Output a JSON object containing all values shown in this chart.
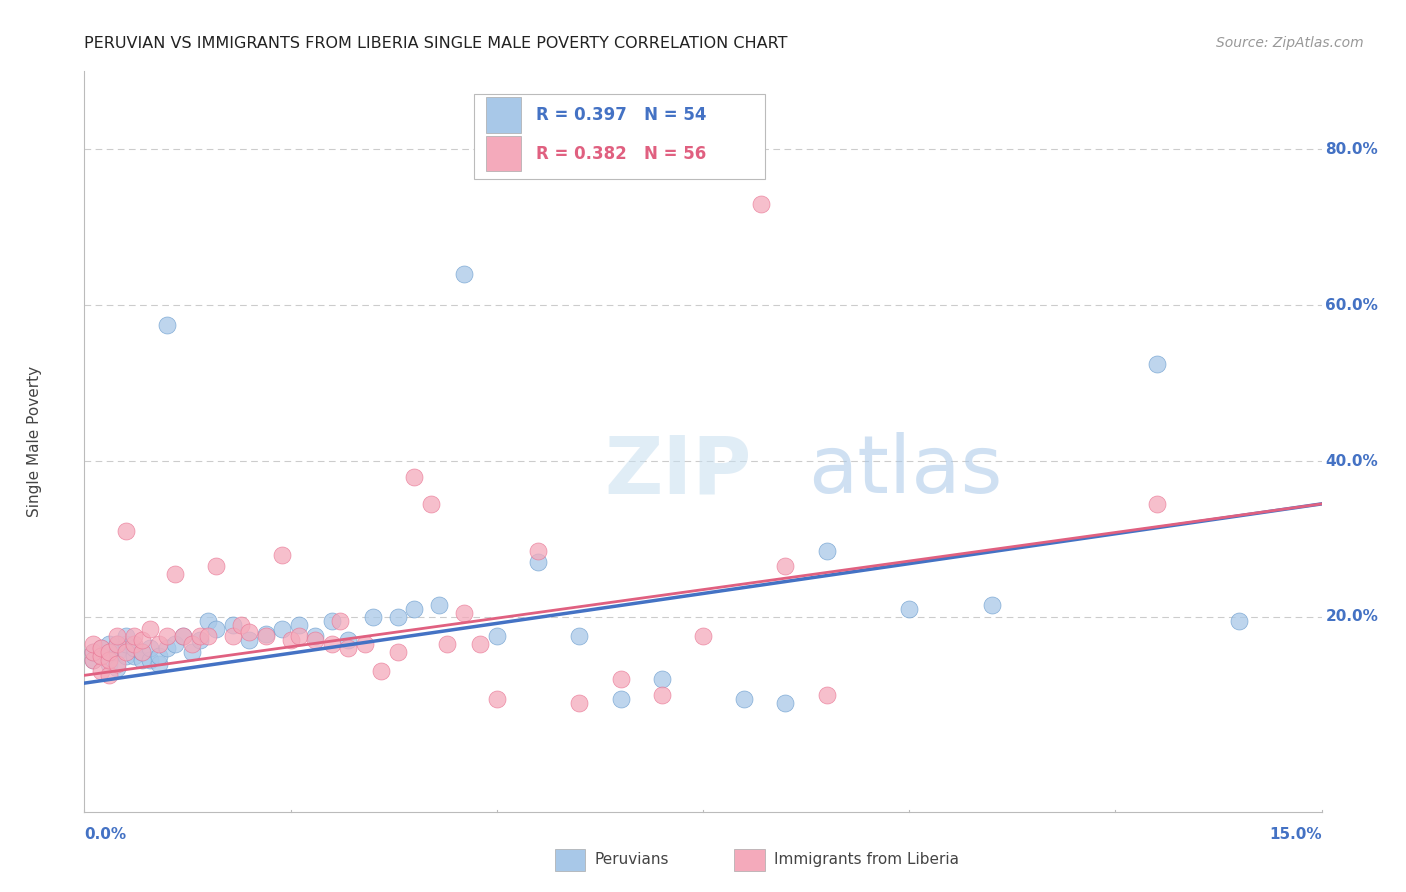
{
  "title": "PERUVIAN VS IMMIGRANTS FROM LIBERIA SINGLE MALE POVERTY CORRELATION CHART",
  "source": "Source: ZipAtlas.com",
  "ylabel": "Single Male Poverty",
  "y_tick_labels": [
    "20.0%",
    "40.0%",
    "60.0%",
    "80.0%"
  ],
  "y_tick_values": [
    0.2,
    0.4,
    0.6,
    0.8
  ],
  "xlim": [
    0.0,
    0.15
  ],
  "ylim": [
    -0.05,
    0.9
  ],
  "legend_label1": "R = 0.397   N = 54",
  "legend_label2": "R = 0.382   N = 56",
  "legend_bottom1": "Peruvians",
  "legend_bottom2": "Immigrants from Liberia",
  "color_blue": "#A8C8E8",
  "color_pink": "#F4AABB",
  "color_blue_dark": "#6699CC",
  "color_pink_dark": "#E87090",
  "color_blue_line": "#4472C4",
  "color_pink_line": "#E06080",
  "color_title": "#222222",
  "color_source": "#999999",
  "color_axis_right": "#4472C4",
  "color_grid": "#CCCCCC",
  "background_color": "#FFFFFF",
  "watermark_zip": "ZIP",
  "watermark_atlas": "atlas",
  "trend_x": [
    0.0,
    0.15
  ],
  "blue_trend_y": [
    0.115,
    0.345
  ],
  "pink_trend_y": [
    0.125,
    0.345
  ],
  "blue_x": [
    0.001,
    0.001,
    0.002,
    0.002,
    0.003,
    0.003,
    0.003,
    0.004,
    0.004,
    0.004,
    0.005,
    0.005,
    0.005,
    0.006,
    0.006,
    0.007,
    0.007,
    0.008,
    0.008,
    0.009,
    0.009,
    0.01,
    0.01,
    0.011,
    0.012,
    0.013,
    0.014,
    0.015,
    0.016,
    0.018,
    0.02,
    0.022,
    0.024,
    0.026,
    0.028,
    0.03,
    0.032,
    0.035,
    0.038,
    0.04,
    0.043,
    0.046,
    0.05,
    0.055,
    0.06,
    0.065,
    0.07,
    0.08,
    0.085,
    0.09,
    0.1,
    0.11,
    0.13,
    0.14
  ],
  "blue_y": [
    0.145,
    0.155,
    0.15,
    0.16,
    0.14,
    0.155,
    0.165,
    0.135,
    0.155,
    0.165,
    0.15,
    0.165,
    0.175,
    0.15,
    0.16,
    0.145,
    0.155,
    0.145,
    0.16,
    0.14,
    0.15,
    0.16,
    0.575,
    0.165,
    0.175,
    0.155,
    0.17,
    0.195,
    0.185,
    0.19,
    0.17,
    0.178,
    0.185,
    0.19,
    0.175,
    0.195,
    0.17,
    0.2,
    0.2,
    0.21,
    0.215,
    0.64,
    0.175,
    0.27,
    0.175,
    0.095,
    0.12,
    0.095,
    0.09,
    0.285,
    0.21,
    0.215,
    0.525,
    0.195
  ],
  "pink_x": [
    0.001,
    0.001,
    0.001,
    0.002,
    0.002,
    0.002,
    0.003,
    0.003,
    0.003,
    0.004,
    0.004,
    0.004,
    0.005,
    0.005,
    0.006,
    0.006,
    0.007,
    0.007,
    0.008,
    0.009,
    0.01,
    0.011,
    0.012,
    0.013,
    0.014,
    0.015,
    0.016,
    0.018,
    0.019,
    0.02,
    0.022,
    0.024,
    0.025,
    0.026,
    0.028,
    0.03,
    0.031,
    0.032,
    0.034,
    0.036,
    0.038,
    0.04,
    0.042,
    0.044,
    0.046,
    0.048,
    0.05,
    0.055,
    0.06,
    0.065,
    0.07,
    0.075,
    0.082,
    0.085,
    0.09,
    0.13
  ],
  "pink_y": [
    0.145,
    0.155,
    0.165,
    0.13,
    0.15,
    0.16,
    0.125,
    0.145,
    0.155,
    0.14,
    0.165,
    0.175,
    0.155,
    0.31,
    0.165,
    0.175,
    0.155,
    0.17,
    0.185,
    0.165,
    0.175,
    0.255,
    0.175,
    0.165,
    0.175,
    0.175,
    0.265,
    0.175,
    0.19,
    0.18,
    0.175,
    0.28,
    0.17,
    0.175,
    0.17,
    0.165,
    0.195,
    0.16,
    0.165,
    0.13,
    0.155,
    0.38,
    0.345,
    0.165,
    0.205,
    0.165,
    0.095,
    0.285,
    0.09,
    0.12,
    0.1,
    0.175,
    0.73,
    0.265,
    0.1,
    0.345
  ]
}
